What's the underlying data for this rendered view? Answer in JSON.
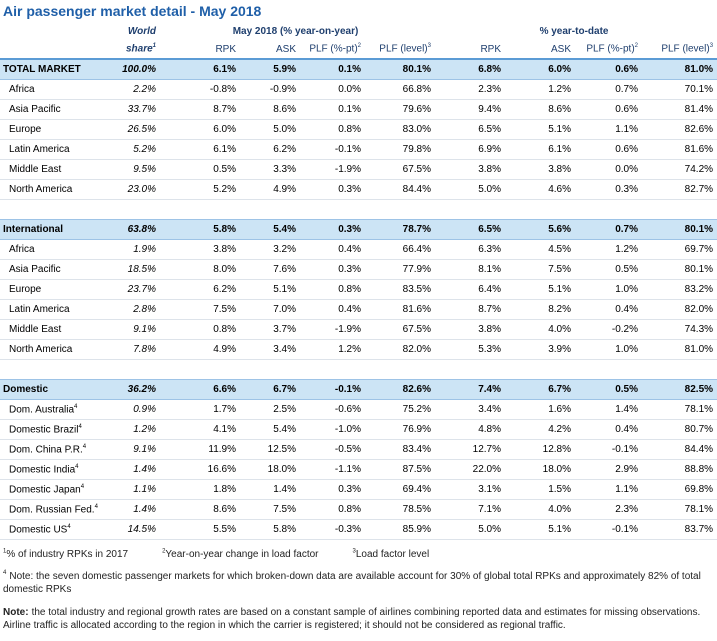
{
  "title": "Air passenger market detail - May 2018",
  "header": {
    "share": "World",
    "share2": "share",
    "share_sup": "1",
    "group1": "May 2018 (% year-on-year)",
    "group2": "% year-to-date",
    "columns": [
      {
        "label": "RPK"
      },
      {
        "label": "ASK"
      },
      {
        "label": "PLF (%-pt)",
        "sup": "2"
      },
      {
        "label": "PLF (level)",
        "sup": "3"
      },
      {
        "label": "RPK"
      },
      {
        "label": "ASK"
      },
      {
        "label": "PLF (%-pt)",
        "sup": "2"
      },
      {
        "label": "PLF (level)",
        "sup": "3"
      }
    ]
  },
  "sections": [
    {
      "total": {
        "label": "TOTAL MARKET",
        "cells": [
          "100.0%",
          "6.1%",
          "5.9%",
          "0.1%",
          "80.1%",
          "6.8%",
          "6.0%",
          "0.6%",
          "81.0%"
        ]
      },
      "rows": [
        {
          "label": "Africa",
          "cells": [
            "2.2%",
            "-0.8%",
            "-0.9%",
            "0.0%",
            "66.8%",
            "2.3%",
            "1.2%",
            "0.7%",
            "70.1%"
          ]
        },
        {
          "label": "Asia Pacific",
          "cells": [
            "33.7%",
            "8.7%",
            "8.6%",
            "0.1%",
            "79.6%",
            "9.4%",
            "8.6%",
            "0.6%",
            "81.4%"
          ]
        },
        {
          "label": "Europe",
          "cells": [
            "26.5%",
            "6.0%",
            "5.0%",
            "0.8%",
            "83.0%",
            "6.5%",
            "5.1%",
            "1.1%",
            "82.6%"
          ]
        },
        {
          "label": "Latin America",
          "cells": [
            "5.2%",
            "6.1%",
            "6.2%",
            "-0.1%",
            "79.8%",
            "6.9%",
            "6.1%",
            "0.6%",
            "81.6%"
          ]
        },
        {
          "label": "Middle East",
          "cells": [
            "9.5%",
            "0.5%",
            "3.3%",
            "-1.9%",
            "67.5%",
            "3.8%",
            "3.8%",
            "0.0%",
            "74.2%"
          ]
        },
        {
          "label": "North America",
          "cells": [
            "23.0%",
            "5.2%",
            "4.9%",
            "0.3%",
            "84.4%",
            "5.0%",
            "4.6%",
            "0.3%",
            "82.7%"
          ]
        }
      ]
    },
    {
      "total": {
        "label": "International",
        "cells": [
          "63.8%",
          "5.8%",
          "5.4%",
          "0.3%",
          "78.7%",
          "6.5%",
          "5.6%",
          "0.7%",
          "80.1%"
        ]
      },
      "rows": [
        {
          "label": "Africa",
          "cells": [
            "1.9%",
            "3.8%",
            "3.2%",
            "0.4%",
            "66.4%",
            "6.3%",
            "4.5%",
            "1.2%",
            "69.7%"
          ]
        },
        {
          "label": "Asia Pacific",
          "cells": [
            "18.5%",
            "8.0%",
            "7.6%",
            "0.3%",
            "77.9%",
            "8.1%",
            "7.5%",
            "0.5%",
            "80.1%"
          ]
        },
        {
          "label": "Europe",
          "cells": [
            "23.7%",
            "6.2%",
            "5.1%",
            "0.8%",
            "83.5%",
            "6.4%",
            "5.1%",
            "1.0%",
            "83.2%"
          ]
        },
        {
          "label": "Latin America",
          "cells": [
            "2.8%",
            "7.5%",
            "7.0%",
            "0.4%",
            "81.6%",
            "8.7%",
            "8.2%",
            "0.4%",
            "82.0%"
          ]
        },
        {
          "label": "Middle East",
          "cells": [
            "9.1%",
            "0.8%",
            "3.7%",
            "-1.9%",
            "67.5%",
            "3.8%",
            "4.0%",
            "-0.2%",
            "74.3%"
          ]
        },
        {
          "label": "North America",
          "cells": [
            "7.8%",
            "4.9%",
            "3.4%",
            "1.2%",
            "82.0%",
            "5.3%",
            "3.9%",
            "1.0%",
            "81.0%"
          ]
        }
      ]
    },
    {
      "total": {
        "label": "Domestic",
        "cells": [
          "36.2%",
          "6.6%",
          "6.7%",
          "-0.1%",
          "82.6%",
          "7.4%",
          "6.7%",
          "0.5%",
          "82.5%"
        ]
      },
      "rows": [
        {
          "label": "Dom. Australia",
          "sup": "4",
          "cells": [
            "0.9%",
            "1.7%",
            "2.5%",
            "-0.6%",
            "75.2%",
            "3.4%",
            "1.6%",
            "1.4%",
            "78.1%"
          ]
        },
        {
          "label": "Domestic Brazil",
          "sup": "4",
          "cells": [
            "1.2%",
            "4.1%",
            "5.4%",
            "-1.0%",
            "76.9%",
            "4.8%",
            "4.2%",
            "0.4%",
            "80.7%"
          ]
        },
        {
          "label": "Dom. China P.R.",
          "sup": "4",
          "cells": [
            "9.1%",
            "11.9%",
            "12.5%",
            "-0.5%",
            "83.4%",
            "12.7%",
            "12.8%",
            "-0.1%",
            "84.4%"
          ]
        },
        {
          "label": "Domestic India",
          "sup": "4",
          "cells": [
            "1.4%",
            "16.6%",
            "18.0%",
            "-1.1%",
            "87.5%",
            "22.0%",
            "18.0%",
            "2.9%",
            "88.8%"
          ]
        },
        {
          "label": "Domestic Japan",
          "sup": "4",
          "cells": [
            "1.1%",
            "1.8%",
            "1.4%",
            "0.3%",
            "69.4%",
            "3.1%",
            "1.5%",
            "1.1%",
            "69.8%"
          ]
        },
        {
          "label": "Dom. Russian Fed.",
          "sup": "4",
          "cells": [
            "1.4%",
            "8.6%",
            "7.5%",
            "0.8%",
            "78.5%",
            "7.1%",
            "4.0%",
            "2.3%",
            "78.1%"
          ]
        },
        {
          "label": "Domestic US",
          "sup": "4",
          "cells": [
            "14.5%",
            "5.5%",
            "5.8%",
            "-0.3%",
            "85.9%",
            "5.0%",
            "5.1%",
            "-0.1%",
            "83.7%"
          ]
        }
      ]
    }
  ],
  "footnotes": [
    {
      "sup": "1",
      "text": "% of industry RPKs in 2017"
    },
    {
      "sup": "2",
      "text": "Year-on-year change in load factor"
    },
    {
      "sup": "3",
      "text": "Load factor level"
    }
  ],
  "note4": {
    "sup": "4",
    "text": "Note: the seven domestic passenger markets for which broken-down data are available account for 30% of global total RPKs and approximately 82% of total domestic RPKs"
  },
  "note": {
    "bold": "Note:",
    "text": "the total industry and regional growth rates are based on a constant sample of airlines combining reported data and estimates for missing observations. Airline traffic is allocated according to the region in which the carrier is registered; it should not be considered as regional traffic."
  }
}
